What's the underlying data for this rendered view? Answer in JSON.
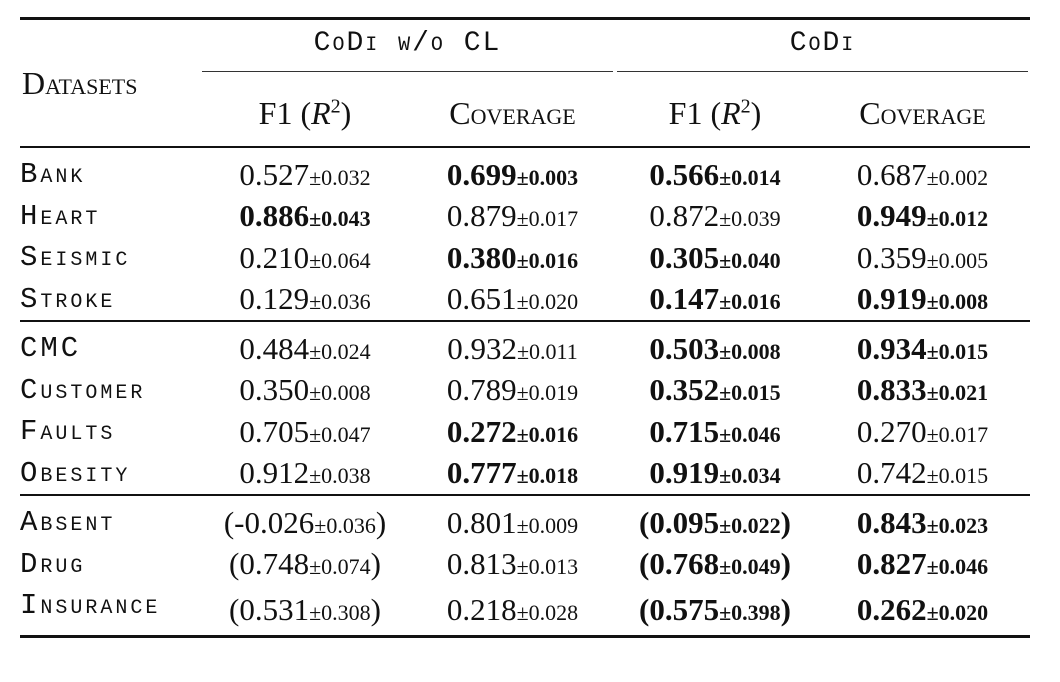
{
  "table": {
    "corner": "Datasets",
    "groups": [
      "CoDi w/o CL",
      "CoDi"
    ],
    "subheaders": [
      {
        "pre": "F1 (",
        "var": "R",
        "sup": "2",
        "post": ")"
      },
      {
        "text": "Coverage"
      },
      {
        "pre": "F1 (",
        "var": "R",
        "sup": "2",
        "post": ")"
      },
      {
        "text": "Coverage"
      }
    ],
    "sections": [
      [
        {
          "name": "Bank",
          "cells": [
            {
              "main": "0.527",
              "std": "±0.032"
            },
            {
              "main": "0.699",
              "std": "±0.003",
              "bold": true
            },
            {
              "main": "0.566",
              "std": "±0.014",
              "bold": true
            },
            {
              "main": "0.687",
              "std": "±0.002"
            }
          ]
        },
        {
          "name": "Heart",
          "cells": [
            {
              "main": "0.886",
              "std": "±0.043",
              "bold": true
            },
            {
              "main": "0.879",
              "std": "±0.017"
            },
            {
              "main": "0.872",
              "std": "±0.039"
            },
            {
              "main": "0.949",
              "std": "±0.012",
              "bold": true
            }
          ]
        },
        {
          "name": "Seismic",
          "cells": [
            {
              "main": "0.210",
              "std": "±0.064"
            },
            {
              "main": "0.380",
              "std": "±0.016",
              "bold": true
            },
            {
              "main": "0.305",
              "std": "±0.040",
              "bold": true
            },
            {
              "main": "0.359",
              "std": "±0.005"
            }
          ]
        },
        {
          "name": "Stroke",
          "cells": [
            {
              "main": "0.129",
              "std": "±0.036"
            },
            {
              "main": "0.651",
              "std": "±0.020"
            },
            {
              "main": "0.147",
              "std": "±0.016",
              "bold": true
            },
            {
              "main": "0.919",
              "std": "±0.008",
              "bold": true
            }
          ]
        }
      ],
      [
        {
          "name": "CMC",
          "cells": [
            {
              "main": "0.484",
              "std": "±0.024"
            },
            {
              "main": "0.932",
              "std": "±0.011"
            },
            {
              "main": "0.503",
              "std": "±0.008",
              "bold": true
            },
            {
              "main": "0.934",
              "std": "±0.015",
              "bold": true
            }
          ]
        },
        {
          "name": "Customer",
          "cells": [
            {
              "main": "0.350",
              "std": "±0.008"
            },
            {
              "main": "0.789",
              "std": "±0.019"
            },
            {
              "main": "0.352",
              "std": "±0.015",
              "bold": true
            },
            {
              "main": "0.833",
              "std": "±0.021",
              "bold": true
            }
          ]
        },
        {
          "name": "Faults",
          "cells": [
            {
              "main": "0.705",
              "std": "±0.047"
            },
            {
              "main": "0.272",
              "std": "±0.016",
              "bold": true
            },
            {
              "main": "0.715",
              "std": "±0.046",
              "bold": true
            },
            {
              "main": "0.270",
              "std": "±0.017"
            }
          ]
        },
        {
          "name": "Obesity",
          "cells": [
            {
              "main": "0.912",
              "std": "±0.038"
            },
            {
              "main": "0.777",
              "std": "±0.018",
              "bold": true
            },
            {
              "main": "0.919",
              "std": "±0.034",
              "bold": true
            },
            {
              "main": "0.742",
              "std": "±0.015"
            }
          ]
        }
      ],
      [
        {
          "name": "Absent",
          "cells": [
            {
              "open": "(",
              "main": "-0.026",
              "std": "±0.036",
              "close": ")"
            },
            {
              "main": "0.801",
              "std": "±0.009"
            },
            {
              "open": "(",
              "main": "0.095",
              "std": "±0.022",
              "close": ")",
              "bold": true
            },
            {
              "main": "0.843",
              "std": "±0.023",
              "bold": true
            }
          ]
        },
        {
          "name": "Drug",
          "cells": [
            {
              "open": "(",
              "main": "0.748",
              "std": "±0.074",
              "close": ")"
            },
            {
              "main": "0.813",
              "std": "±0.013"
            },
            {
              "open": "(",
              "main": "0.768",
              "std": "±0.049",
              "close": ")",
              "bold": true
            },
            {
              "main": "0.827",
              "std": "±0.046",
              "bold": true
            }
          ]
        },
        {
          "name": "Insurance",
          "cells": [
            {
              "open": "(",
              "main": "0.531",
              "std": "±0.308",
              "close": ")"
            },
            {
              "main": "0.218",
              "std": "±0.028"
            },
            {
              "open": "(",
              "main": "0.575",
              "std": "±0.398",
              "close": ")",
              "bold": true
            },
            {
              "main": "0.262",
              "std": "±0.020",
              "bold": true
            }
          ]
        }
      ]
    ]
  }
}
